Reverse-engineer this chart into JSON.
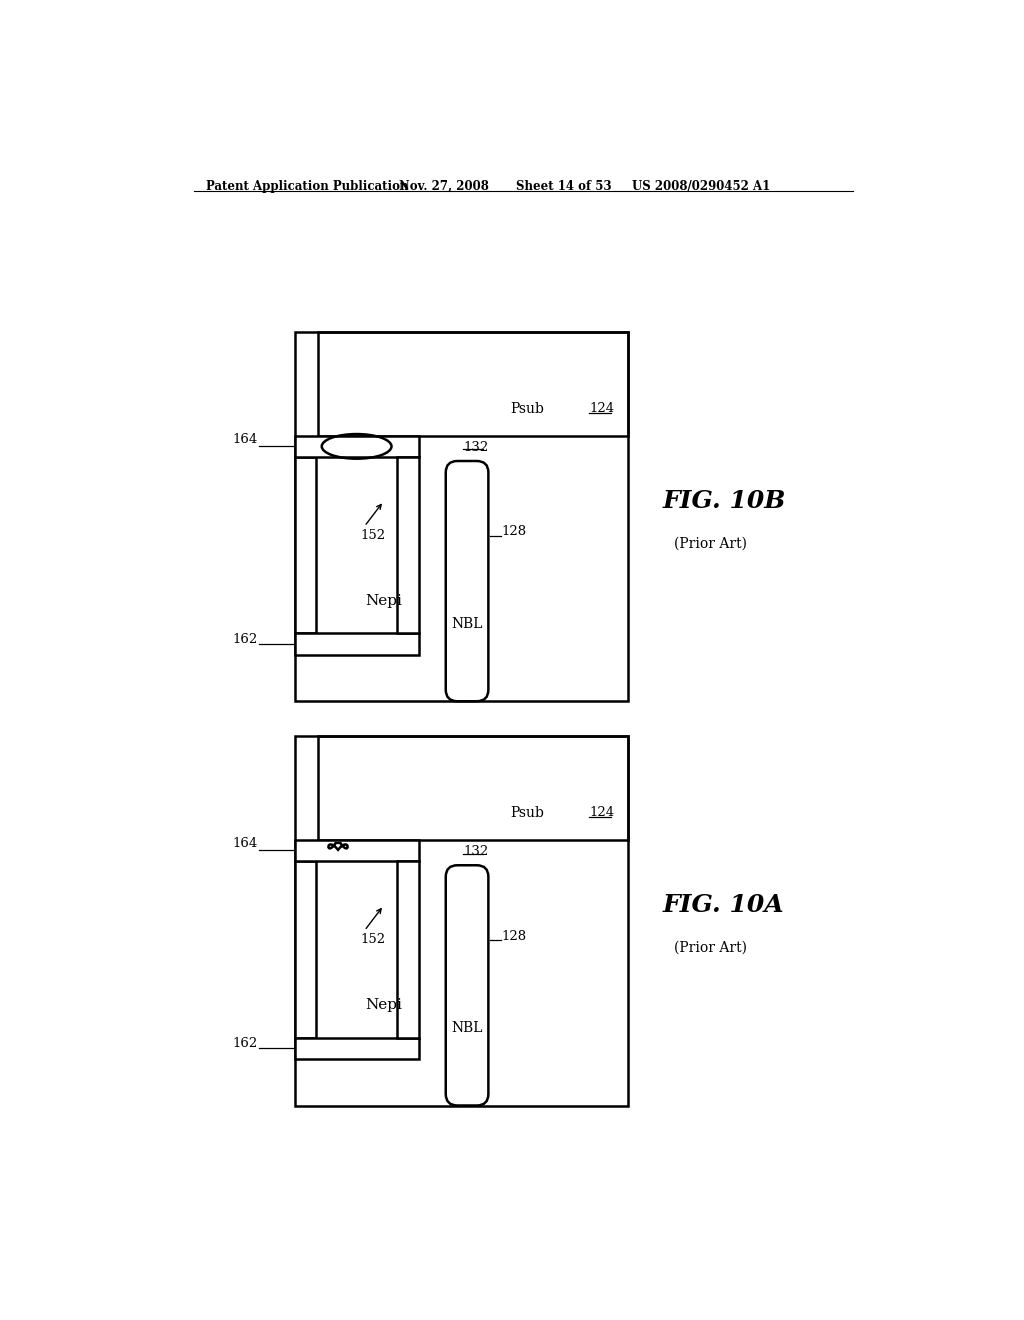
{
  "bg_color": "#ffffff",
  "line_color": "#000000",
  "lw": 1.8,
  "header_text": "Patent Application Publication",
  "header_date": "Nov. 27, 2008",
  "header_sheet": "Sheet 14 of 53",
  "header_patent": "US 2008/0290452 A1"
}
